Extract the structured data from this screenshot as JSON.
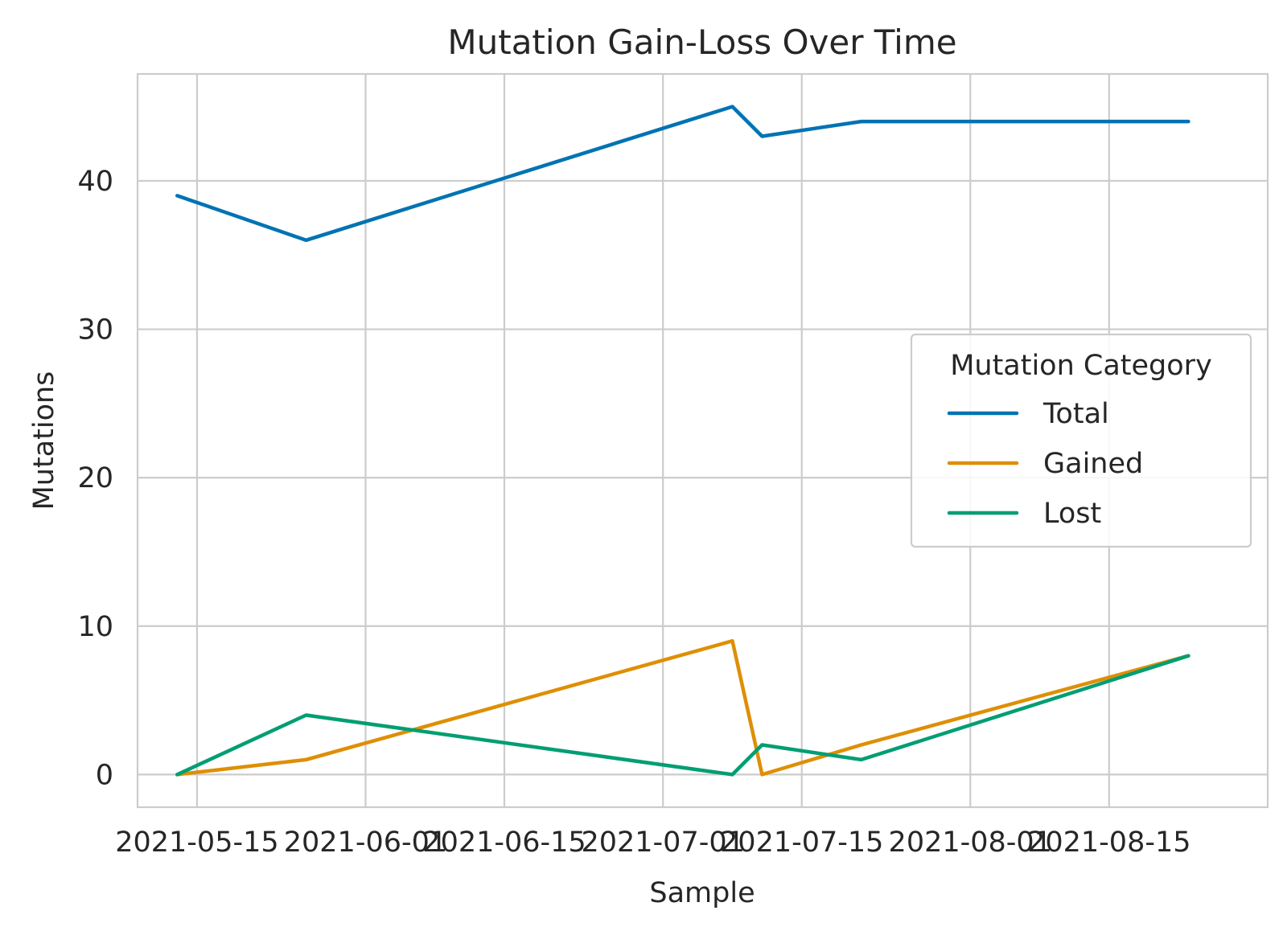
{
  "chart_data": {
    "type": "line",
    "title": "Mutation Gain-Loss Over Time",
    "xlabel": "Sample",
    "ylabel": "Mutations",
    "xlim": [
      "2021-05-09",
      "2021-08-31"
    ],
    "ylim": [
      -2.2,
      47.2
    ],
    "x_ticks": [
      "2021-05-15",
      "2021-06-01",
      "2021-06-15",
      "2021-07-01",
      "2021-07-15",
      "2021-08-01",
      "2021-08-15"
    ],
    "y_ticks": [
      0,
      10,
      20,
      30,
      40
    ],
    "grid": true,
    "x": [
      "2021-05-13",
      "2021-05-26",
      "2021-07-08",
      "2021-07-11",
      "2021-07-21",
      "2021-08-23"
    ],
    "series": [
      {
        "name": "Total",
        "color": "#0173b2",
        "values": [
          39,
          36,
          45,
          43,
          44,
          44
        ]
      },
      {
        "name": "Gained",
        "color": "#de8f05",
        "values": [
          0,
          1,
          9,
          0,
          2,
          8
        ]
      },
      {
        "name": "Lost",
        "color": "#029e73",
        "values": [
          0,
          4,
          0,
          2,
          1,
          8
        ]
      }
    ],
    "legend": {
      "title": "Mutation Category",
      "placement": "center-right"
    }
  }
}
